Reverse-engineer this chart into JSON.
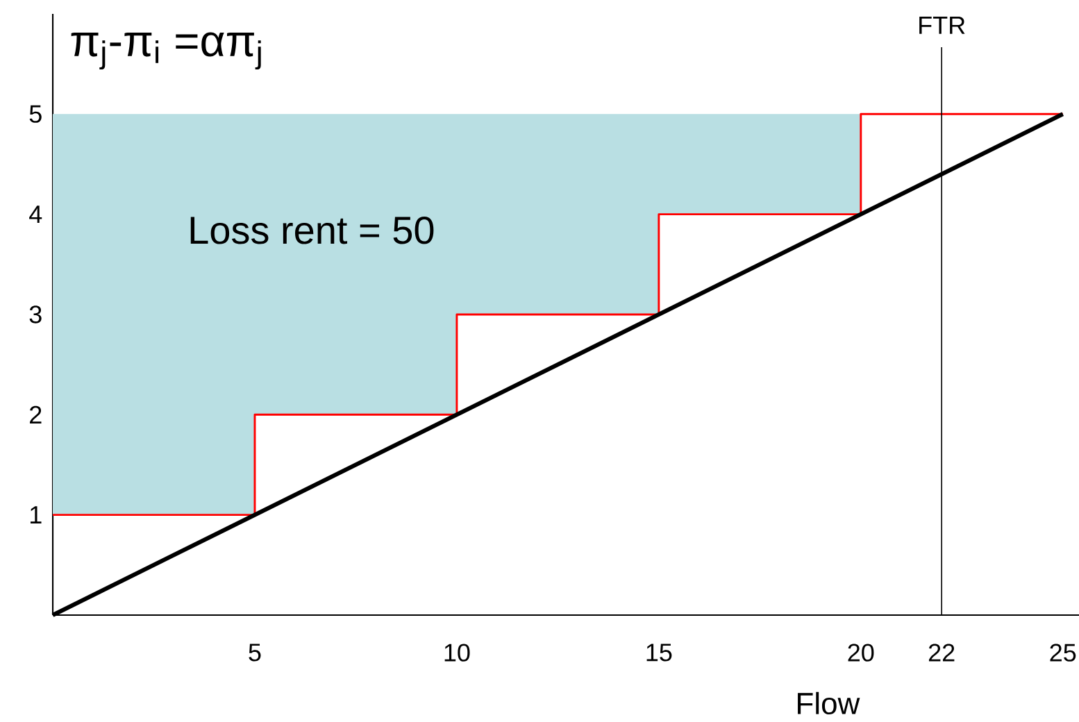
{
  "chart_data": {
    "type": "step",
    "title": "π$_{j}$-π$_{i}$ =απ$_{j}$",
    "xlabel": "Flow",
    "annotations": [
      "Loss rent = 50"
    ],
    "xlim": [
      0,
      25.4
    ],
    "ylim": [
      0,
      6
    ],
    "xticks": [
      5,
      10,
      15,
      20,
      22,
      25
    ],
    "yticks": [
      1,
      2,
      3,
      4,
      5
    ],
    "series": [
      {
        "color": "#ff0000",
        "x": [
          0,
          5,
          10,
          15,
          20,
          25
        ],
        "values": [
          1,
          2,
          3,
          4,
          5,
          5
        ],
        "lower": [
          1,
          2,
          3,
          4,
          5,
          null
        ],
        "upper": [
          5,
          5,
          5,
          5,
          5,
          null
        ]
      },
      {
        "type": "line",
        "color": "#000000",
        "x": [
          0,
          25
        ],
        "values": [
          0,
          5
        ]
      }
    ],
    "ref_lines": [
      {
        "axis": "x",
        "value": 22,
        "label": "FTR",
        "color": "#000000"
      }
    ]
  }
}
